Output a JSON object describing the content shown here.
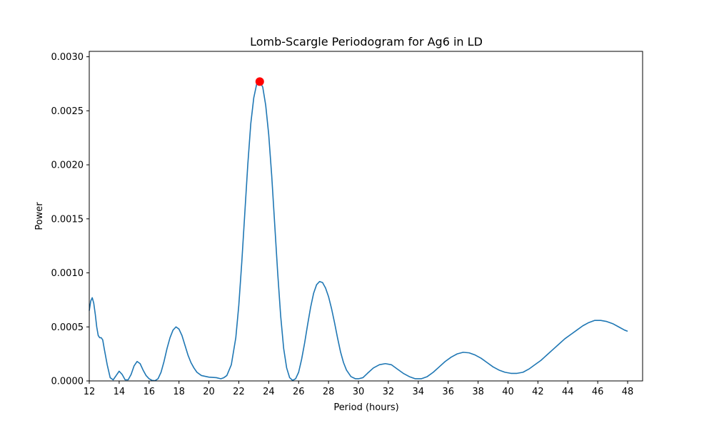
{
  "chart_data": {
    "type": "line",
    "title": "Lomb-Scargle Periodogram for Ag6 in LD",
    "xlabel": "Period (hours)",
    "ylabel": "Power",
    "xlim": [
      12,
      49
    ],
    "ylim": [
      0,
      0.00305
    ],
    "x_ticks": [
      12,
      14,
      16,
      18,
      20,
      22,
      24,
      26,
      28,
      30,
      32,
      34,
      36,
      38,
      40,
      42,
      44,
      46,
      48
    ],
    "x_tick_labels": [
      "12",
      "14",
      "16",
      "18",
      "20",
      "22",
      "24",
      "26",
      "28",
      "30",
      "32",
      "34",
      "36",
      "38",
      "40",
      "42",
      "44",
      "46",
      "48"
    ],
    "y_ticks": [
      0,
      0.0005,
      0.001,
      0.0015,
      0.002,
      0.0025,
      0.003
    ],
    "y_tick_labels": [
      "0.0000",
      "0.0005",
      "0.0010",
      "0.0015",
      "0.0020",
      "0.0025",
      "0.0030"
    ],
    "grid": false,
    "series": [
      {
        "color": "#1f77b4",
        "points": [
          [
            12.0,
            0.00065
          ],
          [
            12.1,
            0.00074
          ],
          [
            12.2,
            0.00077
          ],
          [
            12.3,
            0.00072
          ],
          [
            12.4,
            0.00062
          ],
          [
            12.5,
            0.0005
          ],
          [
            12.6,
            0.00042
          ],
          [
            12.7,
            0.0004
          ],
          [
            12.8,
            0.0004
          ],
          [
            12.9,
            0.00038
          ],
          [
            13.0,
            0.0003
          ],
          [
            13.2,
            0.00015
          ],
          [
            13.4,
            3e-05
          ],
          [
            13.6,
            1e-05
          ],
          [
            13.8,
            5e-05
          ],
          [
            14.0,
            9e-05
          ],
          [
            14.2,
            6e-05
          ],
          [
            14.4,
            1e-05
          ],
          [
            14.6,
            1e-05
          ],
          [
            14.8,
            6e-05
          ],
          [
            15.0,
            0.00014
          ],
          [
            15.2,
            0.00018
          ],
          [
            15.4,
            0.00016
          ],
          [
            15.6,
            0.0001
          ],
          [
            15.8,
            5e-05
          ],
          [
            16.0,
            2e-05
          ],
          [
            16.2,
            5e-06
          ],
          [
            16.4,
            2e-06
          ],
          [
            16.6,
            2e-05
          ],
          [
            16.8,
            8e-05
          ],
          [
            17.0,
            0.00018
          ],
          [
            17.2,
            0.0003
          ],
          [
            17.4,
            0.0004
          ],
          [
            17.6,
            0.00047
          ],
          [
            17.8,
            0.0005
          ],
          [
            18.0,
            0.00048
          ],
          [
            18.2,
            0.00042
          ],
          [
            18.4,
            0.00033
          ],
          [
            18.6,
            0.00024
          ],
          [
            18.8,
            0.00017
          ],
          [
            19.0,
            0.00012
          ],
          [
            19.2,
            8e-05
          ],
          [
            19.5,
            5e-05
          ],
          [
            20.0,
            3.5e-05
          ],
          [
            20.5,
            3e-05
          ],
          [
            20.8,
            2e-05
          ],
          [
            21.0,
            3e-05
          ],
          [
            21.2,
            5e-05
          ],
          [
            21.5,
            0.00015
          ],
          [
            21.8,
            0.0004
          ],
          [
            22.0,
            0.0007
          ],
          [
            22.2,
            0.0011
          ],
          [
            22.4,
            0.00155
          ],
          [
            22.6,
            0.002
          ],
          [
            22.8,
            0.00238
          ],
          [
            23.0,
            0.00262
          ],
          [
            23.2,
            0.00275
          ],
          [
            23.4,
            0.00277
          ],
          [
            23.6,
            0.00272
          ],
          [
            23.8,
            0.00255
          ],
          [
            24.0,
            0.00228
          ],
          [
            24.2,
            0.0019
          ],
          [
            24.4,
            0.00145
          ],
          [
            24.6,
            0.001
          ],
          [
            24.8,
            0.0006
          ],
          [
            25.0,
            0.0003
          ],
          [
            25.2,
            0.00012
          ],
          [
            25.4,
            3e-05
          ],
          [
            25.6,
            5e-06
          ],
          [
            25.8,
            2e-05
          ],
          [
            26.0,
            8e-05
          ],
          [
            26.2,
            0.0002
          ],
          [
            26.4,
            0.00035
          ],
          [
            26.6,
            0.00052
          ],
          [
            26.8,
            0.00068
          ],
          [
            27.0,
            0.00081
          ],
          [
            27.2,
            0.00089
          ],
          [
            27.4,
            0.00092
          ],
          [
            27.6,
            0.00091
          ],
          [
            27.8,
            0.00086
          ],
          [
            28.0,
            0.00078
          ],
          [
            28.2,
            0.00067
          ],
          [
            28.4,
            0.00054
          ],
          [
            28.6,
            0.0004
          ],
          [
            28.8,
            0.00027
          ],
          [
            29.0,
            0.00017
          ],
          [
            29.2,
            0.0001
          ],
          [
            29.5,
            4e-05
          ],
          [
            29.8,
            2e-05
          ],
          [
            30.0,
            2e-05
          ],
          [
            30.3,
            3e-05
          ],
          [
            30.6,
            7e-05
          ],
          [
            31.0,
            0.00012
          ],
          [
            31.4,
            0.00015
          ],
          [
            31.8,
            0.00016
          ],
          [
            32.2,
            0.00015
          ],
          [
            32.6,
            0.00011
          ],
          [
            33.0,
            7e-05
          ],
          [
            33.4,
            4e-05
          ],
          [
            33.8,
            2e-05
          ],
          [
            34.2,
            2e-05
          ],
          [
            34.6,
            4e-05
          ],
          [
            35.0,
            8e-05
          ],
          [
            35.4,
            0.00013
          ],
          [
            35.8,
            0.00018
          ],
          [
            36.2,
            0.00022
          ],
          [
            36.6,
            0.00025
          ],
          [
            37.0,
            0.000265
          ],
          [
            37.4,
            0.00026
          ],
          [
            37.8,
            0.00024
          ],
          [
            38.2,
            0.00021
          ],
          [
            38.6,
            0.00017
          ],
          [
            39.0,
            0.00013
          ],
          [
            39.4,
            0.0001
          ],
          [
            39.8,
            8e-05
          ],
          [
            40.2,
            7e-05
          ],
          [
            40.6,
            7e-05
          ],
          [
            41.0,
            8e-05
          ],
          [
            41.4,
            0.00011
          ],
          [
            41.8,
            0.00015
          ],
          [
            42.2,
            0.00019
          ],
          [
            42.6,
            0.00024
          ],
          [
            43.0,
            0.00029
          ],
          [
            43.4,
            0.00034
          ],
          [
            43.8,
            0.00039
          ],
          [
            44.2,
            0.00043
          ],
          [
            44.6,
            0.00047
          ],
          [
            45.0,
            0.00051
          ],
          [
            45.4,
            0.00054
          ],
          [
            45.8,
            0.00056
          ],
          [
            46.2,
            0.00056
          ],
          [
            46.6,
            0.00055
          ],
          [
            47.0,
            0.00053
          ],
          [
            47.4,
            0.0005
          ],
          [
            47.8,
            0.00047
          ],
          [
            48.0,
            0.00046
          ]
        ]
      }
    ],
    "peak": {
      "x": 23.4,
      "y": 0.00277,
      "color": "#ff0000"
    }
  }
}
